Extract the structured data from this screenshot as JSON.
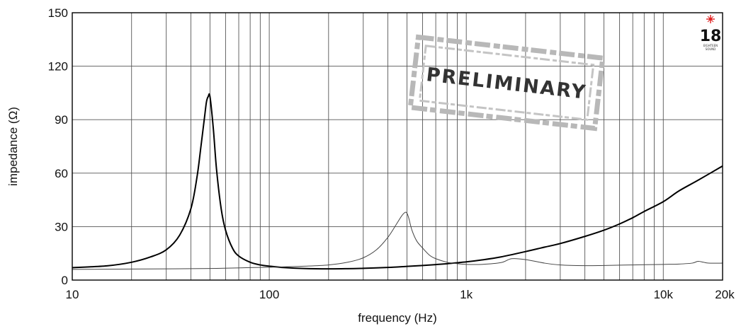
{
  "chart_data": {
    "type": "line",
    "xlabel": "frequency (Hz)",
    "ylabel": "impedance (Ω)",
    "xscale": "log",
    "xlim": [
      10,
      20000
    ],
    "ylim": [
      0,
      150
    ],
    "x_ticks": [
      {
        "value": 10,
        "label": "10"
      },
      {
        "value": 100,
        "label": "100"
      },
      {
        "value": 1000,
        "label": "1k"
      },
      {
        "value": 10000,
        "label": "10k"
      },
      {
        "value": 20000,
        "label": "20k"
      }
    ],
    "y_ticks": [
      0,
      30,
      60,
      90,
      120,
      150
    ],
    "grid": true,
    "series": [
      {
        "color": "#000000",
        "style": "thick",
        "x": [
          10,
          15,
          20,
          25,
          30,
          35,
          40,
          43,
          45,
          47,
          48,
          49,
          50,
          52,
          54,
          57,
          60,
          65,
          70,
          80,
          90,
          100,
          120,
          150,
          200,
          250,
          300,
          400,
          500,
          600,
          700,
          800,
          1000,
          1200,
          1500,
          2000,
          2500,
          3000,
          4000,
          5000,
          6000,
          7000,
          8000,
          10000,
          12000,
          15000,
          20000
        ],
        "y": [
          7,
          8,
          10,
          13,
          17,
          25,
          40,
          58,
          75,
          92,
          100,
          103,
          103,
          85,
          62,
          40,
          28,
          18,
          13.5,
          10,
          8.5,
          7.8,
          7,
          6.5,
          6.3,
          6.4,
          6.6,
          7.1,
          7.7,
          8.2,
          8.7,
          9.2,
          10.2,
          11.3,
          13,
          16,
          18.5,
          20.5,
          24.5,
          28,
          31.5,
          35,
          38.5,
          44,
          50,
          56,
          64
        ]
      },
      {
        "color": "#444444",
        "style": "thin",
        "x": [
          10,
          20,
          50,
          80,
          100,
          150,
          200,
          250,
          300,
          350,
          400,
          440,
          470,
          490,
          500,
          510,
          530,
          560,
          600,
          650,
          700,
          800,
          900,
          1000,
          1200,
          1500,
          1700,
          2000,
          2500,
          3000,
          4000,
          5000,
          7000,
          10000,
          12000,
          14000,
          15000,
          16000,
          17000,
          20000
        ],
        "y": [
          6,
          6.2,
          6.5,
          7,
          7.2,
          7.8,
          8.5,
          10,
          12.5,
          17,
          24,
          31,
          36,
          38,
          37.5,
          35,
          28,
          22,
          18,
          14,
          12,
          10,
          9.2,
          8.8,
          8.8,
          9.8,
          12,
          11.5,
          9.5,
          8.5,
          8.1,
          8.2,
          8.5,
          8.8,
          9,
          9.5,
          10.5,
          10,
          9.5,
          9.5
        ]
      }
    ]
  },
  "stamp": {
    "text": "PRELIMINARY"
  },
  "logo": {
    "number": "18",
    "line1": "EIGHTEEN",
    "line2": "SOUND"
  },
  "colors": {
    "grid": "#555555",
    "frame": "#000000",
    "stamp": "#b0b0b0",
    "logo_star": "#e02020"
  }
}
